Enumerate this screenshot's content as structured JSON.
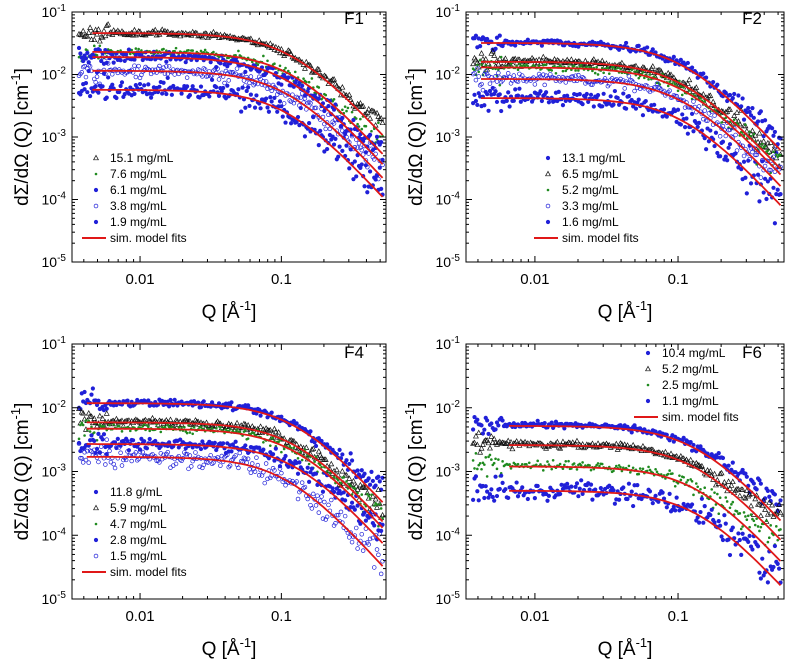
{
  "figure": {
    "y_axis_label": "dΣ/dΩ (Q) [cm⁻¹]",
    "x_axis_label": "Q [Å⁻¹]"
  },
  "chart_data": [
    {
      "type": "scatter",
      "title": "F1",
      "xscale": "log",
      "yscale": "log",
      "xlim": [
        0.0033,
        0.55
      ],
      "ylim": [
        1e-05,
        0.1
      ],
      "xticks": [
        0.01,
        0.1
      ],
      "xtick_labels": [
        "0.01",
        "0.1"
      ],
      "yticks": [
        1e-05,
        0.0001,
        0.001,
        0.01,
        0.1
      ],
      "ytick_labels": [
        "10-5",
        "10-4",
        "10-3",
        "10-2",
        "10-1"
      ],
      "xlabel": "Q [Å-1]",
      "ylabel": "dΣ/dΩ (Q) [cm-1]",
      "legend": "bottom-left",
      "fit_label": "sim. model fits",
      "series": [
        {
          "name": "15.1 mg/mL",
          "marker": "triangle",
          "color": "#111111",
          "I0": 0.046,
          "q_knee": 0.13,
          "background": 0.0011,
          "noise": 0.1,
          "fit_start": 0.0046
        },
        {
          "name": "7.6 mg/mL",
          "marker": "dot-small",
          "color": "#1f8a1f",
          "I0": 0.023,
          "q_knee": 0.13,
          "background": 0.0005,
          "noise": 0.14,
          "fit_start": 0.0046
        },
        {
          "name": "6.1 mg/mL",
          "marker": "dot",
          "color": "#2020d8",
          "I0": 0.019,
          "q_knee": 0.12,
          "background": 0.0004,
          "noise": 0.18,
          "fit_start": 0.0046
        },
        {
          "name": "3.8 mg/mL",
          "marker": "circle-open",
          "color": "#2020d8",
          "I0": 0.0115,
          "q_knee": 0.12,
          "background": 0.00025,
          "noise": 0.2,
          "fit_start": 0.0046
        },
        {
          "name": "1.9 mg/mL",
          "marker": "dot",
          "color": "#2020d8",
          "I0": 0.0057,
          "q_knee": 0.12,
          "background": 6e-05,
          "noise": 0.3,
          "fit_start": 0.0046
        }
      ]
    },
    {
      "type": "scatter",
      "title": "F2",
      "xscale": "log",
      "yscale": "log",
      "xlim": [
        0.0033,
        0.55
      ],
      "ylim": [
        1e-05,
        0.1
      ],
      "xticks": [
        0.01,
        0.1
      ],
      "xtick_labels": [
        "0.01",
        "0.1"
      ],
      "yticks": [
        1e-05,
        0.0001,
        0.001,
        0.01,
        0.1
      ],
      "ytick_labels": [
        "10-5",
        "10-4",
        "10-3",
        "10-2",
        "10-1"
      ],
      "xlabel": "Q [Å-1]",
      "ylabel": "dΣ/dΩ (Q) [cm-1]",
      "legend": "bottom-left",
      "fit_label": "sim. model fits",
      "series": [
        {
          "name": "13.1 mg/mL",
          "marker": "dot",
          "color": "#2020d8",
          "I0": 0.032,
          "q_knee": 0.12,
          "background": 0.0008,
          "noise": 0.12,
          "fit_start": 0.0042
        },
        {
          "name": "6.5 mg/mL",
          "marker": "triangle",
          "color": "#111111",
          "I0": 0.016,
          "q_knee": 0.12,
          "background": 0.0004,
          "noise": 0.14,
          "fit_start": 0.0042
        },
        {
          "name": "5.2 mg/mL",
          "marker": "dot-small",
          "color": "#1f8a1f",
          "I0": 0.013,
          "q_knee": 0.12,
          "background": 0.0003,
          "noise": 0.16,
          "fit_start": 0.0042
        },
        {
          "name": "3.3 mg/mL",
          "marker": "circle-open",
          "color": "#2020d8",
          "I0": 0.0085,
          "q_knee": 0.12,
          "background": 0.0002,
          "noise": 0.18,
          "fit_start": 0.0042
        },
        {
          "name": "1.6 mg/mL",
          "marker": "dot",
          "color": "#2020d8",
          "I0": 0.0042,
          "q_knee": 0.12,
          "background": 5e-05,
          "noise": 0.3,
          "fit_start": 0.0042
        }
      ]
    },
    {
      "type": "scatter",
      "title": "F4",
      "xscale": "log",
      "yscale": "log",
      "xlim": [
        0.0033,
        0.55
      ],
      "ylim": [
        1e-05,
        0.1
      ],
      "xticks": [
        0.01,
        0.1
      ],
      "xtick_labels": [
        "0.01",
        "0.1"
      ],
      "yticks": [
        1e-05,
        0.0001,
        0.001,
        0.01,
        0.1
      ],
      "ytick_labels": [
        "10-5",
        "10-4",
        "10-3",
        "10-2",
        "10-1"
      ],
      "xlabel": "Q [Å-1]",
      "ylabel": "dΣ/dΩ (Q) [cm-1]",
      "legend": "bottom-left",
      "fit_label": "sim. model fits",
      "series": [
        {
          "name": "11.8 g/mL",
          "marker": "dot",
          "color": "#2020d8",
          "I0": 0.0118,
          "q_knee": 0.14,
          "background": 0.0005,
          "noise": 0.12,
          "fit_start": 0.0042
        },
        {
          "name": "5.9 mg/mL",
          "marker": "triangle",
          "color": "#111111",
          "I0": 0.0059,
          "q_knee": 0.14,
          "background": 0.0003,
          "noise": 0.14,
          "fit_start": 0.0042
        },
        {
          "name": "4.7 mg/mL",
          "marker": "dot-small",
          "color": "#1f8a1f",
          "I0": 0.0047,
          "q_knee": 0.14,
          "background": 0.0002,
          "noise": 0.16,
          "fit_start": 0.0042
        },
        {
          "name": "2.8 mg/mL",
          "marker": "dot",
          "color": "#2020d8",
          "I0": 0.0027,
          "q_knee": 0.14,
          "background": 0.00012,
          "noise": 0.2,
          "fit_start": 0.0042
        },
        {
          "name": "1.5 mg/mL",
          "marker": "circle-open",
          "color": "#2020d8",
          "I0": 0.0017,
          "q_knee": 0.12,
          "background": 2e-05,
          "noise": 0.3,
          "fit_start": 0.0042
        }
      ]
    },
    {
      "type": "scatter",
      "title": "F6",
      "xscale": "log",
      "yscale": "log",
      "xlim": [
        0.0033,
        0.55
      ],
      "ylim": [
        1e-05,
        0.1
      ],
      "xticks": [
        0.01,
        0.1
      ],
      "xtick_labels": [
        "0.01",
        "0.1"
      ],
      "yticks": [
        1e-05,
        0.0001,
        0.001,
        0.01,
        0.1
      ],
      "ytick_labels": [
        "10-5",
        "10-4",
        "10-3",
        "10-2",
        "10-1"
      ],
      "xlabel": "Q [Å-1]",
      "ylabel": "dΣ/dΩ (Q) [cm-1]",
      "legend": "top-right",
      "fit_label": "sim. model fits",
      "series": [
        {
          "name": "10.4 mg/mL",
          "marker": "dot",
          "color": "#2020d8",
          "I0": 0.0052,
          "q_knee": 0.15,
          "background": 0.0004,
          "noise": 0.1,
          "fit_start": 0.0066
        },
        {
          "name": "5.2 mg/mL",
          "marker": "triangle",
          "color": "#111111",
          "I0": 0.0026,
          "q_knee": 0.15,
          "background": 0.0002,
          "noise": 0.12,
          "fit_start": 0.0066
        },
        {
          "name": "2.5 mg/mL",
          "marker": "dot-small",
          "color": "#1f8a1f",
          "I0": 0.0012,
          "q_knee": 0.15,
          "background": 0.0001,
          "noise": 0.16,
          "fit_start": 0.0066
        },
        {
          "name": "1.1 mg/mL",
          "marker": "dot",
          "color": "#2020d8",
          "I0": 0.0005,
          "q_knee": 0.15,
          "background": 2e-05,
          "noise": 0.35,
          "fit_start": 0.0066
        }
      ]
    }
  ],
  "colors": {
    "fit_line": "#e01818",
    "axis": "#000000"
  }
}
